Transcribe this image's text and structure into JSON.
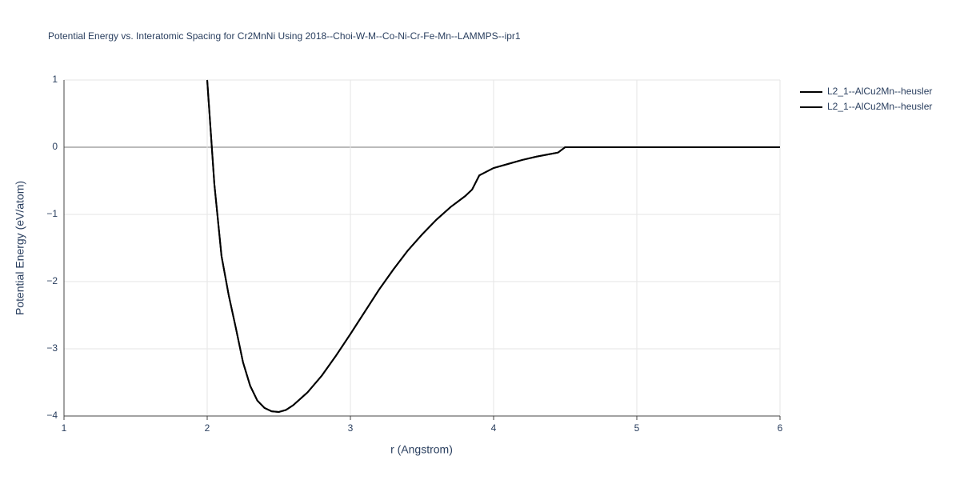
{
  "chart_data": {
    "type": "line",
    "title": "Potential Energy vs. Interatomic Spacing for Cr2MnNi Using 2018--Choi-W-M--Co-Ni-Cr-Fe-Mn--LAMMPS--ipr1",
    "x_label": "r (Angstrom)",
    "y_label": "Potential Energy (eV/atom)",
    "x": [
      2.0,
      2.05,
      2.1,
      2.15,
      2.2,
      2.25,
      2.3,
      2.35,
      2.4,
      2.45,
      2.5,
      2.55,
      2.6,
      2.7,
      2.8,
      2.9,
      3.0,
      3.1,
      3.2,
      3.3,
      3.4,
      3.5,
      3.6,
      3.7,
      3.8,
      3.85,
      3.9,
      4.0,
      4.1,
      4.2,
      4.3,
      4.4,
      4.45,
      4.5,
      5.0,
      6.0
    ],
    "series": [
      {
        "name": "L2_1--AlCu2Mn--heusler",
        "color": "#000000",
        "values": [
          1.0,
          -0.55,
          -1.62,
          -2.2,
          -2.69,
          -3.2,
          -3.55,
          -3.77,
          -3.88,
          -3.93,
          -3.94,
          -3.91,
          -3.84,
          -3.65,
          -3.4,
          -3.1,
          -2.78,
          -2.45,
          -2.12,
          -1.82,
          -1.54,
          -1.3,
          -1.08,
          -0.89,
          -0.73,
          -0.63,
          -0.42,
          -0.31,
          -0.25,
          -0.19,
          -0.14,
          -0.1,
          -0.08,
          0,
          0,
          0
        ]
      },
      {
        "name": "L2_1--AlCu2Mn--heusler",
        "color": "#000000",
        "values": [
          1.0,
          -0.55,
          -1.62,
          -2.2,
          -2.69,
          -3.2,
          -3.55,
          -3.77,
          -3.88,
          -3.93,
          -3.94,
          -3.91,
          -3.84,
          -3.65,
          -3.4,
          -3.1,
          -2.78,
          -2.45,
          -2.12,
          -1.82,
          -1.54,
          -1.3,
          -1.08,
          -0.89,
          -0.73,
          -0.63,
          -0.42,
          -0.31,
          -0.25,
          -0.19,
          -0.14,
          -0.1,
          -0.08,
          0,
          0,
          0
        ]
      }
    ],
    "xlim": [
      1,
      6
    ],
    "xticks": [
      1,
      2,
      3,
      4,
      5,
      6
    ],
    "ylim": [
      -4,
      1
    ],
    "yticks": [
      {
        "value": -4,
        "label": "−4"
      },
      {
        "value": -3,
        "label": "−3"
      },
      {
        "value": -2,
        "label": "−2"
      },
      {
        "value": -1,
        "label": "−1"
      },
      0,
      1
    ],
    "grid": true,
    "legend": "right"
  }
}
